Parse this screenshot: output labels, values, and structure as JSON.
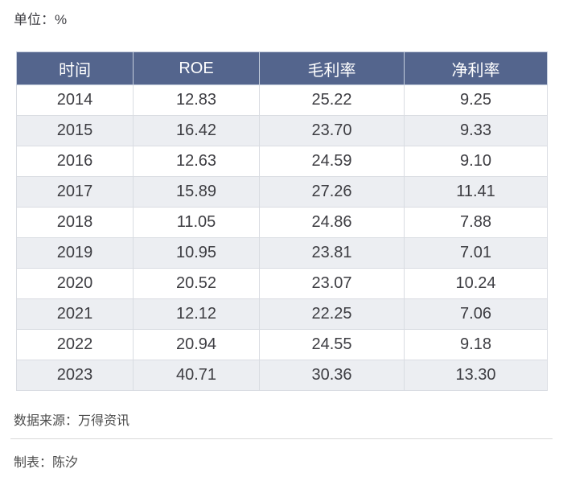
{
  "page": {
    "unit_label": "单位：%",
    "source_label": "数据来源：万得资讯",
    "author_label": "制表：陈汐"
  },
  "colors": {
    "page_bg": "#ffffff",
    "header_bg": "#54658d",
    "header_text": "#ffffff",
    "row_bg": "#ffffff",
    "row_alt_bg": "#eceef2",
    "body_text": "#3d3d42",
    "footer_text": "#4c4c4c"
  },
  "chart_data": {
    "type": "table",
    "title": "单位：%",
    "columns": [
      "时间",
      "ROE",
      "毛利率",
      "净利率"
    ],
    "rows": [
      [
        "2014",
        "12.83",
        "25.22",
        "9.25"
      ],
      [
        "2015",
        "16.42",
        "23.70",
        "9.33"
      ],
      [
        "2016",
        "12.63",
        "24.59",
        "9.10"
      ],
      [
        "2017",
        "15.89",
        "27.26",
        "11.41"
      ],
      [
        "2018",
        "11.05",
        "24.86",
        "7.88"
      ],
      [
        "2019",
        "10.95",
        "23.81",
        "7.01"
      ],
      [
        "2020",
        "20.52",
        "23.07",
        "10.24"
      ],
      [
        "2021",
        "12.12",
        "22.25",
        "7.06"
      ],
      [
        "2022",
        "20.94",
        "24.55",
        "9.18"
      ],
      [
        "2023",
        "40.71",
        "30.36",
        "13.30"
      ]
    ],
    "source": "数据来源：万得资讯",
    "author": "制表：陈汐"
  }
}
